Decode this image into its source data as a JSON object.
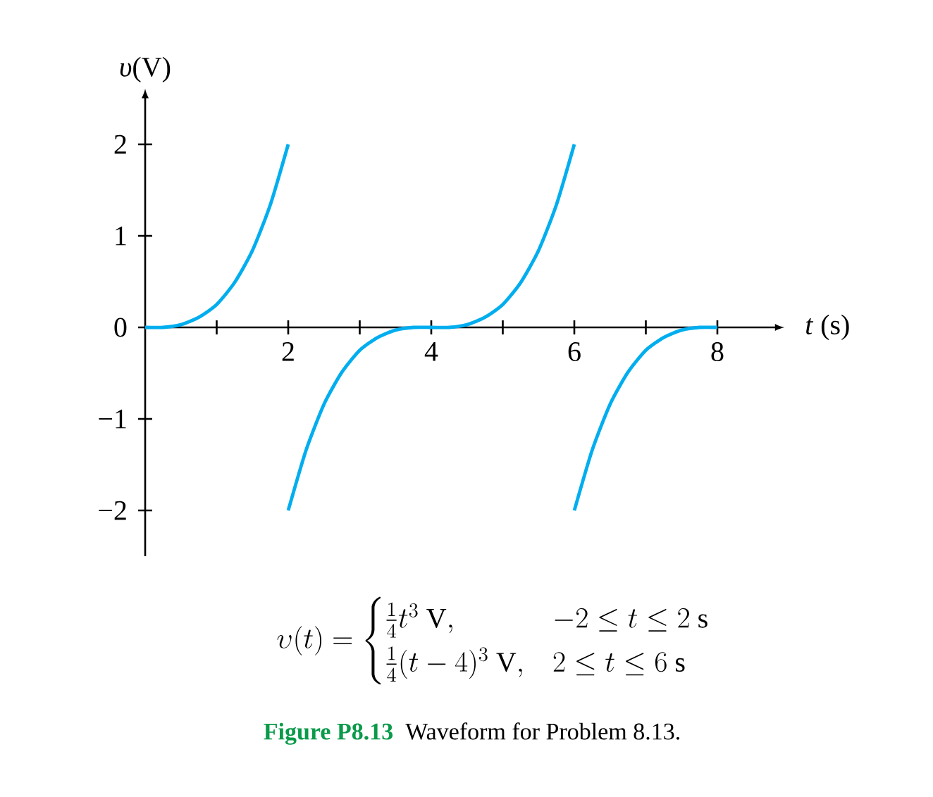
{
  "chart_data": {
    "type": "line",
    "xlabel": "*t* (s)",
    "ylabel": "*υ*(V)",
    "xlim": [
      0,
      8.8
    ],
    "ylim": [
      -2.5,
      2.5
    ],
    "xticks": [
      {
        "value": 1,
        "label": null
      },
      2,
      {
        "value": 3,
        "label": null
      },
      4,
      {
        "value": 5,
        "label": null
      },
      6,
      {
        "value": 7,
        "label": null
      },
      8
    ],
    "yticks": [
      {
        "value": -2,
        "label": "−2"
      },
      {
        "value": -1,
        "label": "−1"
      },
      0,
      1,
      2
    ],
    "grid": false,
    "marker": "none",
    "line_style": "solid",
    "series": [
      {
        "color": "#00aeef",
        "x": [
          0,
          0.25,
          0.5,
          0.75,
          1,
          1.25,
          1.5,
          1.75,
          2
        ],
        "values": [
          0,
          0,
          0.03,
          0.11,
          0.25,
          0.49,
          0.84,
          1.34,
          2
        ]
      },
      {
        "color": "#00aeef",
        "x": [
          2,
          2.25,
          2.5,
          2.75,
          3,
          3.25,
          3.5,
          3.75,
          4,
          4.25,
          4.5,
          4.75,
          5,
          5.25,
          5.5,
          5.75,
          6
        ],
        "values": [
          -2,
          -1.34,
          -0.84,
          -0.49,
          -0.25,
          -0.11,
          -0.03,
          0,
          0,
          0,
          0.03,
          0.11,
          0.25,
          0.49,
          0.84,
          1.34,
          2
        ]
      },
      {
        "color": "#00aeef",
        "x": [
          6,
          6.25,
          6.5,
          6.75,
          7,
          7.25,
          7.5,
          7.75,
          8
        ],
        "values": [
          -2,
          -1.34,
          -0.84,
          -0.49,
          -0.25,
          -0.11,
          -0.03,
          0,
          0
        ]
      }
    ],
    "annotations": [
      "\\upsilon(t) = \\begin{cases} \\frac{1}{4}t^3\\ \\mathrm{V}, & -2 \\le t \\le 2\\ \\mathrm{s} \\\\ \\frac{1}{4}(t-4)^3\\ \\mathrm{V}, & 2 \\le t \\le 6\\ \\mathrm{s} \\end{cases}",
      "**Figure P8.13**",
      "Waveform for Problem 8.13."
    ]
  }
}
